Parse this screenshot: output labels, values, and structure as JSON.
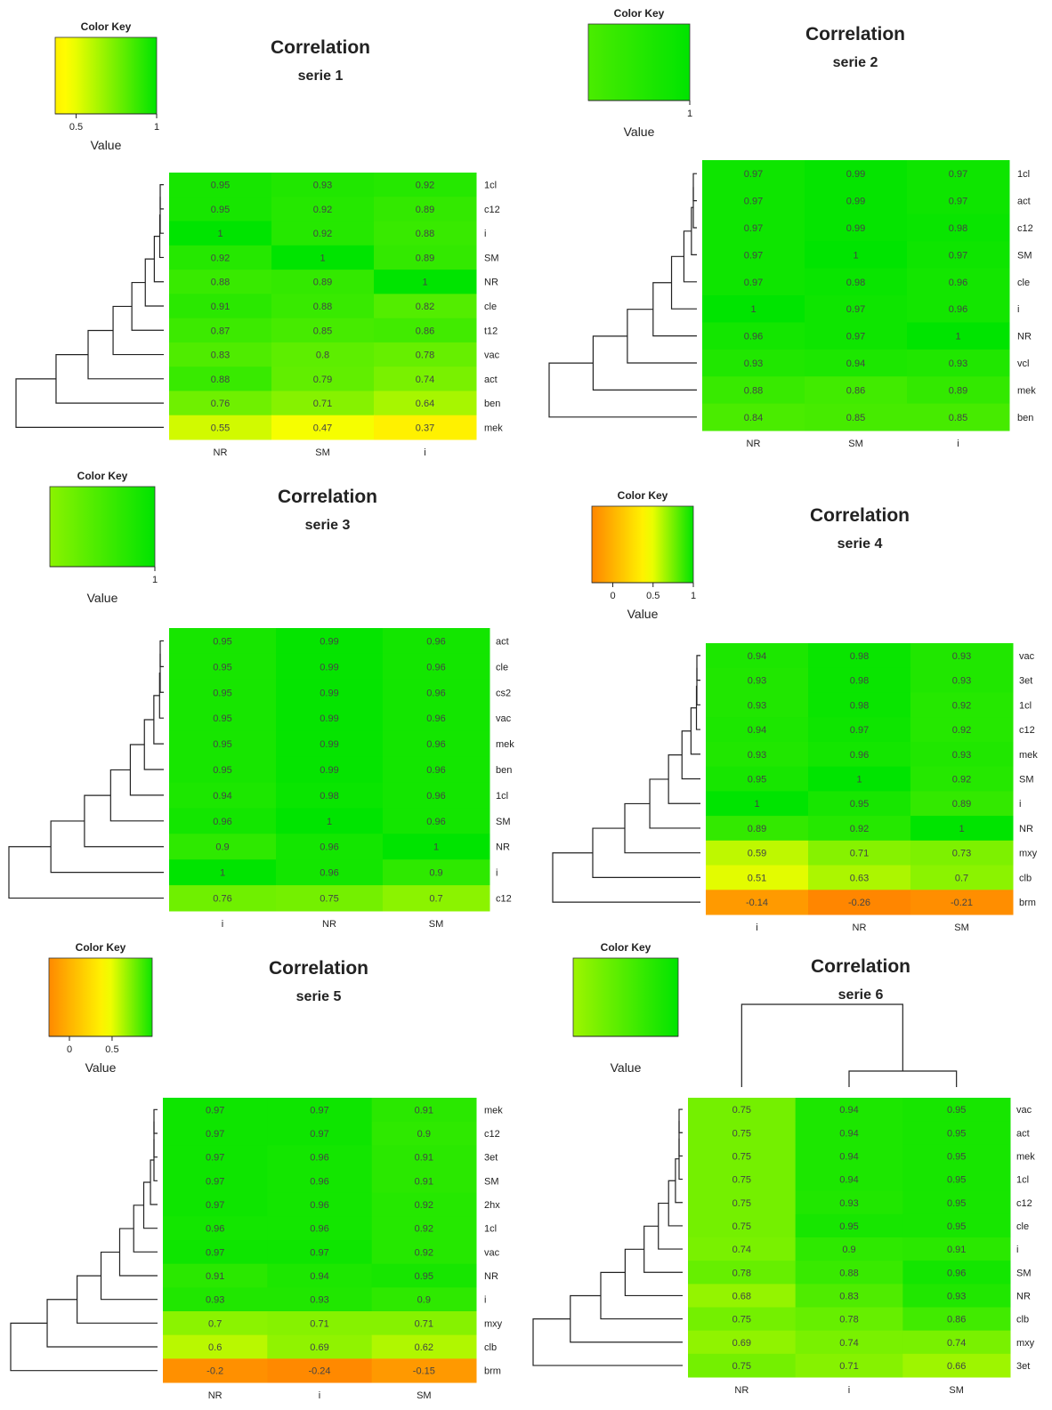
{
  "color_stops": {
    "orange": "#ff7f00",
    "yellow": "#ffff00",
    "green": "#00e400"
  },
  "chart_data": [
    {
      "type": "heatmap",
      "title": "Correlation",
      "subtitle": "serie 1",
      "color_key": {
        "title": "Color Key",
        "label": "Value",
        "ticks": [
          "0.5",
          "1"
        ],
        "range": [
          0.37,
          1
        ]
      },
      "columns": [
        "NR",
        "SM",
        "i"
      ],
      "rows": [
        "1cl",
        "c12",
        "i",
        "SM",
        "NR",
        "cle",
        "t12",
        "vac",
        "act",
        "ben",
        "mek"
      ],
      "values": [
        [
          0.95,
          0.93,
          0.92
        ],
        [
          0.95,
          0.92,
          0.89
        ],
        [
          1,
          0.92,
          0.88
        ],
        [
          0.92,
          1,
          0.89
        ],
        [
          0.88,
          0.89,
          1
        ],
        [
          0.91,
          0.88,
          0.82
        ],
        [
          0.87,
          0.85,
          0.86
        ],
        [
          0.83,
          0.8,
          0.78
        ],
        [
          0.88,
          0.79,
          0.74
        ],
        [
          0.76,
          0.71,
          0.64
        ],
        [
          0.55,
          0.47,
          0.37
        ]
      ]
    },
    {
      "type": "heatmap",
      "title": "Correlation",
      "subtitle": "serie 2",
      "color_key": {
        "title": "Color Key",
        "label": "Value",
        "ticks": [
          "1"
        ],
        "range": [
          0.84,
          1
        ]
      },
      "columns": [
        "NR",
        "SM",
        "i"
      ],
      "rows": [
        "1cl",
        "act",
        "c12",
        "SM",
        "cle",
        "i",
        "NR",
        "vcl",
        "mek",
        "ben"
      ],
      "values": [
        [
          0.97,
          0.99,
          0.97
        ],
        [
          0.97,
          0.99,
          0.97
        ],
        [
          0.97,
          0.99,
          0.98
        ],
        [
          0.97,
          1,
          0.97
        ],
        [
          0.97,
          0.98,
          0.96
        ],
        [
          1,
          0.97,
          0.96
        ],
        [
          0.96,
          0.97,
          1
        ],
        [
          0.93,
          0.94,
          0.93
        ],
        [
          0.88,
          0.86,
          0.89
        ],
        [
          0.84,
          0.85,
          0.85
        ]
      ]
    },
    {
      "type": "heatmap",
      "title": "Correlation",
      "subtitle": "serie 3",
      "color_key": {
        "title": "Color Key",
        "label": "Value",
        "ticks": [
          "1"
        ],
        "range": [
          0.7,
          1
        ]
      },
      "columns": [
        "i",
        "NR",
        "SM"
      ],
      "rows": [
        "act",
        "cle",
        "cs2",
        "vac",
        "mek",
        "ben",
        "1cl",
        "SM",
        "NR",
        "i",
        "c12"
      ],
      "values": [
        [
          0.95,
          0.99,
          0.96
        ],
        [
          0.95,
          0.99,
          0.96
        ],
        [
          0.95,
          0.99,
          0.96
        ],
        [
          0.95,
          0.99,
          0.96
        ],
        [
          0.95,
          0.99,
          0.96
        ],
        [
          0.95,
          0.99,
          0.96
        ],
        [
          0.94,
          0.98,
          0.96
        ],
        [
          0.96,
          1,
          0.96
        ],
        [
          0.9,
          0.96,
          1
        ],
        [
          1,
          0.96,
          0.9
        ],
        [
          0.76,
          0.75,
          0.7
        ]
      ]
    },
    {
      "type": "heatmap",
      "title": "Correlation",
      "subtitle": "serie 4",
      "color_key": {
        "title": "Color Key",
        "label": "Value",
        "ticks": [
          "0",
          "0.5",
          "1"
        ],
        "range": [
          -0.26,
          1
        ]
      },
      "columns": [
        "i",
        "NR",
        "SM"
      ],
      "rows": [
        "vac",
        "3et",
        "1cl",
        "c12",
        "mek",
        "SM",
        "i",
        "NR",
        "mxy",
        "clb",
        "brm"
      ],
      "values": [
        [
          0.94,
          0.98,
          0.93
        ],
        [
          0.93,
          0.98,
          0.93
        ],
        [
          0.93,
          0.98,
          0.92
        ],
        [
          0.94,
          0.97,
          0.92
        ],
        [
          0.93,
          0.96,
          0.93
        ],
        [
          0.95,
          1,
          0.92
        ],
        [
          1,
          0.95,
          0.89
        ],
        [
          0.89,
          0.92,
          1
        ],
        [
          0.59,
          0.71,
          0.73
        ],
        [
          0.51,
          0.63,
          0.7
        ],
        [
          -0.14,
          -0.26,
          -0.21
        ]
      ]
    },
    {
      "type": "heatmap",
      "title": "Correlation",
      "subtitle": "serie 5",
      "color_key": {
        "title": "Color Key",
        "label": "Value",
        "ticks": [
          "0",
          "0.5"
        ],
        "range": [
          -0.24,
          0.97
        ]
      },
      "columns": [
        "NR",
        "i",
        "SM"
      ],
      "rows": [
        "mek",
        "c12",
        "3et",
        "SM",
        "2hx",
        "1cl",
        "vac",
        "NR",
        "i",
        "mxy",
        "clb",
        "brm"
      ],
      "values": [
        [
          0.97,
          0.97,
          0.91
        ],
        [
          0.97,
          0.97,
          0.9
        ],
        [
          0.97,
          0.96,
          0.91
        ],
        [
          0.97,
          0.96,
          0.91
        ],
        [
          0.97,
          0.96,
          0.92
        ],
        [
          0.96,
          0.96,
          0.92
        ],
        [
          0.97,
          0.97,
          0.92
        ],
        [
          0.91,
          0.94,
          0.95
        ],
        [
          0.93,
          0.93,
          0.9
        ],
        [
          0.7,
          0.71,
          0.71
        ],
        [
          0.6,
          0.69,
          0.62
        ],
        [
          -0.2,
          -0.24,
          -0.15
        ]
      ]
    },
    {
      "type": "heatmap",
      "title": "Correlation",
      "subtitle": "serie 6",
      "color_key": {
        "title": "Color Key",
        "label": "Value",
        "ticks": [],
        "range": [
          0.66,
          1
        ]
      },
      "columns": [
        "NR",
        "i",
        "SM"
      ],
      "rows": [
        "vac",
        "act",
        "mek",
        "1cl",
        "c12",
        "cle",
        "i",
        "SM",
        "NR",
        "clb",
        "mxy",
        "3et"
      ],
      "values": [
        [
          0.75,
          0.94,
          0.95
        ],
        [
          0.75,
          0.94,
          0.95
        ],
        [
          0.75,
          0.94,
          0.95
        ],
        [
          0.75,
          0.94,
          0.95
        ],
        [
          0.75,
          0.93,
          0.95
        ],
        [
          0.75,
          0.95,
          0.95
        ],
        [
          0.74,
          0.9,
          0.91
        ],
        [
          0.78,
          0.88,
          0.96
        ],
        [
          0.68,
          0.83,
          0.93
        ],
        [
          0.75,
          0.78,
          0.86
        ],
        [
          0.69,
          0.74,
          0.74
        ],
        [
          0.75,
          0.71,
          0.66
        ]
      ]
    }
  ]
}
